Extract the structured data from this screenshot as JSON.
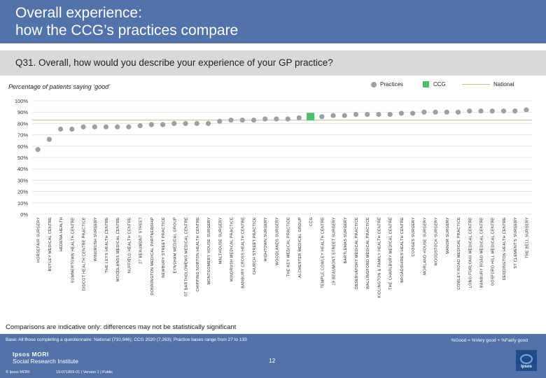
{
  "header": {
    "title": "Overall experience:\nhow the CCG’s practices compare",
    "question": "Q31. Overall, how would you describe your experience of your GP practice?"
  },
  "chart_subtitle": "Percentage of patients saying ‘good’",
  "legend": {
    "practices": "Practices",
    "ccg": "CCG",
    "national": "National"
  },
  "colors": {
    "header_bg": "#5272aa",
    "question_bar": "#d7d9db",
    "practice_point": "#9aa1a6",
    "ccg_point": "#4dbf6e",
    "national_line": "#c8c389"
  },
  "chart_data": {
    "type": "scatter",
    "ylim": [
      0,
      100
    ],
    "yticks": [
      "0%",
      "10%",
      "20%",
      "30%",
      "40%",
      "50%",
      "60%",
      "70%",
      "80%",
      "90%",
      "100%"
    ],
    "national": 83,
    "grid": true,
    "legend_position": "top-right",
    "categories": [
      "HORSEFAIR SURGERY",
      "BOTLEY MEDICAL CENTRE",
      "HEDENA HEALTH",
      "SUMMERTOWN HEALTH CENTRE",
      "DIDCOT HEALTH CENTRE PRACTICE",
      "WINDRUSH SURGERY",
      "THE LEYS HEALTH CENTRE",
      "WOODLANDS MEDICAL CENTRE",
      "NUFFIELD HEALTH CENTRE",
      "27 BEAUMONT STREET",
      "DONNINGTON MEDICAL PARTNERSHIP",
      "NEWBURY STREET PRACTICE",
      "EYNSHAM MEDICAL GROUP",
      "ST BARTHOLOMEWS MEDICAL CENTRE",
      "CHIPPING NORTON HEALTH CENTRE",
      "MONTGOMERY HOUSE SURGERY",
      "MALTHOUSE SURGERY",
      "WINDRUSH MEDICAL PRACTICE",
      "BANBURY CROSS HEALTH CENTRE",
      "CHURCH STREET PRACTICE",
      "HIGHTOWN SURGERY",
      "WOODLANDS SURGERY",
      "THE KEY MEDICAL PRACTICE",
      "ALCHESTER MEDICAL GROUP",
      "CCG",
      "TEMPLE COWLEY HEALTH CENTRE",
      "19 BEAUMONT STREET SURGERY",
      "BARTLEMAS SURGERY",
      "OBSERVATORY MEDICAL PRACTICE",
      "WALLINGFORD MEDICAL PRACTICE",
      "KIDLINGTON & FAMILY HEALTH CENTRE",
      "THE CHARLBURY MEDICAL CENTRE",
      "BROADSHIRES HEALTH CENTRE",
      "COOGES SURGERY",
      "MORLAND HOUSE SURGERY",
      "WOODSTOCK SURGERY",
      "MANOR SURGERY",
      "COWLEY ROAD MEDICAL PRACTICE",
      "LONG FURLONG MEDICAL CENTRE",
      "BANBURY ROAD MEDICAL CENTRE",
      "GOSFORD HILL MEDICAL CENTRE",
      "DEDDINGTON HEALTH CENTRE",
      "ST CLEMENT'S SURGERY",
      "THE BELL SURGERY"
    ],
    "values": [
      57,
      66,
      75,
      75,
      77,
      77,
      77,
      77,
      77,
      78,
      79,
      79,
      80,
      80,
      80,
      80,
      82,
      83,
      83,
      83,
      84,
      84,
      84,
      85,
      86,
      86,
      87,
      87,
      88,
      88,
      88,
      88,
      89,
      89,
      90,
      90,
      90,
      90,
      91,
      91,
      91,
      91,
      91,
      92
    ],
    "highlight_index": 24
  },
  "footer": {
    "disclaimer": "Comparisons are indicative only: differences may not be statistically significant",
    "base": "Base: All those completing a questionnaire: National (710,946); CCG 2020 (7,263); Practice bases range from 27 to 133",
    "formula": "%Good = %Very good + %Fairly good",
    "logo_line1": "Ipsos MORI",
    "logo_line2": "Social Research Institute",
    "page_number": "12",
    "copyright": "© Ipsos MORI",
    "job": "19-071809-01 | Version 1 | Public",
    "ipsos_badge": "Ipsos"
  }
}
